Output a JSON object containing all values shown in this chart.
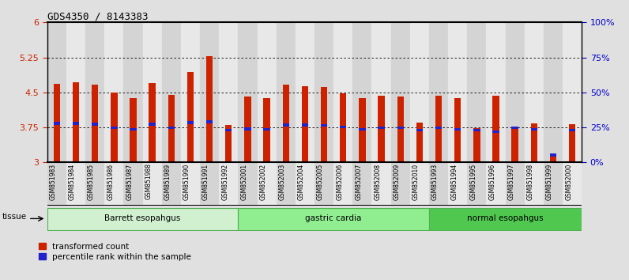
{
  "title": "GDS4350 / 8143383",
  "samples": [
    "GSM851983",
    "GSM851984",
    "GSM851985",
    "GSM851986",
    "GSM851987",
    "GSM851988",
    "GSM851989",
    "GSM851990",
    "GSM851991",
    "GSM851992",
    "GSM852001",
    "GSM852002",
    "GSM852003",
    "GSM852004",
    "GSM852005",
    "GSM852006",
    "GSM852007",
    "GSM852008",
    "GSM852009",
    "GSM852010",
    "GSM851993",
    "GSM851994",
    "GSM851995",
    "GSM851996",
    "GSM851997",
    "GSM851998",
    "GSM851999",
    "GSM852000"
  ],
  "transformed_count": [
    4.68,
    4.72,
    4.67,
    4.5,
    4.38,
    4.7,
    4.45,
    4.93,
    5.28,
    3.8,
    4.42,
    4.38,
    4.67,
    4.63,
    4.62,
    4.48,
    4.38,
    4.43,
    4.42,
    3.85,
    4.43,
    4.38,
    3.73,
    4.43,
    3.72,
    3.83,
    3.18,
    3.82
  ],
  "percentile_rank": [
    3.84,
    3.84,
    3.82,
    3.74,
    3.71,
    3.82,
    3.74,
    3.85,
    3.87,
    3.69,
    3.72,
    3.71,
    3.8,
    3.8,
    3.79,
    3.76,
    3.71,
    3.74,
    3.74,
    3.69,
    3.74,
    3.71,
    3.69,
    3.66,
    3.74,
    3.71,
    3.16,
    3.69
  ],
  "groups": [
    {
      "label": "Barrett esopahgus",
      "start": 0,
      "end": 10,
      "color": "#d0f0d0",
      "edge_color": "#50b050"
    },
    {
      "label": "gastric cardia",
      "start": 10,
      "end": 20,
      "color": "#90ee90",
      "edge_color": "#50b050"
    },
    {
      "label": "normal esopahgus",
      "start": 20,
      "end": 28,
      "color": "#50c850",
      "edge_color": "#50b050"
    }
  ],
  "ylim_left": [
    3.0,
    6.0
  ],
  "yticks_left": [
    3.0,
    3.75,
    4.5,
    5.25,
    6.0
  ],
  "yticks_right": [
    0,
    25,
    50,
    75,
    100
  ],
  "bar_color": "#cc2200",
  "marker_color": "#2222cc",
  "background_color": "#e0e0e0",
  "plot_bg_color": "#ffffff",
  "col_bg_even": "#d4d4d4",
  "col_bg_odd": "#e8e8e8",
  "bar_width": 0.35
}
